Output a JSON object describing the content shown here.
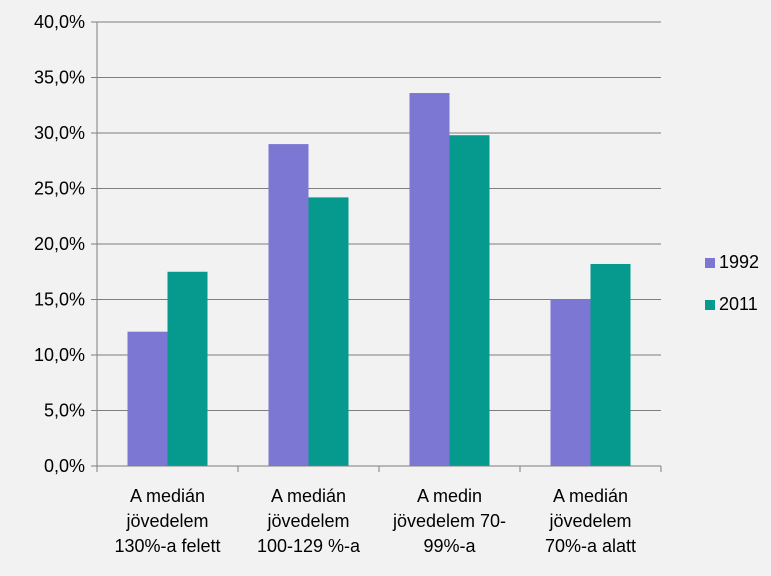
{
  "chart_data": {
    "type": "bar",
    "categories": [
      [
        "A medián",
        "jövedelem",
        "130%-a felett"
      ],
      [
        "A medián",
        "jövedelem",
        "100-129 %-a"
      ],
      [
        "A medin",
        "jövedelem 70-",
        "99%-a"
      ],
      [
        "A medián",
        "jövedelem",
        "70%-a alatt"
      ]
    ],
    "series": [
      {
        "name": "1992",
        "color": "#7b77d3",
        "values": [
          12.1,
          29.0,
          33.6,
          15.0
        ]
      },
      {
        "name": "2011",
        "color": "#069a8e",
        "values": [
          17.5,
          24.2,
          29.8,
          18.2
        ]
      }
    ],
    "yticks": [
      "0,0%",
      "5,0%",
      "10,0%",
      "15,0%",
      "20,0%",
      "25,0%",
      "30,0%",
      "35,0%",
      "40,0%"
    ],
    "ylim": [
      0,
      40
    ],
    "grid": true,
    "legend": "right",
    "gridColor": "#7f7f7f"
  }
}
